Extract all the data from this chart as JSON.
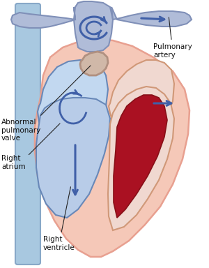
{
  "title": "",
  "background_color": "#ffffff",
  "labels": {
    "pulmonary_artery": "Pulmonary\nartery",
    "abnormal_valve": "Abnormal\npulmonary\nvalve",
    "right_atrium": "Right\natrium",
    "right_ventricle": "Right\nventricle"
  },
  "colors": {
    "heart_fill": "#f5c8b8",
    "heart_outline": "#e8a090",
    "right_side_fill": "#c2d8f0",
    "right_side_stroke": "#6888b8",
    "left_side_fill": "#f0d8d0",
    "left_side_stroke": "#d09878",
    "blood_red": "#aa1122",
    "blood_red_edge": "#881018",
    "vein_blue_fill": "#a8c8e0",
    "vein_blue_edge": "#88a8c8",
    "pulm_trunk_fill": "#b0bcd8",
    "pulm_trunk_edge": "#8090b8",
    "arrow_blue": "#4060a8",
    "valve_fill": "#d0b8a8",
    "valve_edge": "#b09080",
    "text_color": "#111111",
    "annotation_line": "#222222"
  },
  "figsize": [
    3.0,
    3.84
  ],
  "dpi": 100
}
